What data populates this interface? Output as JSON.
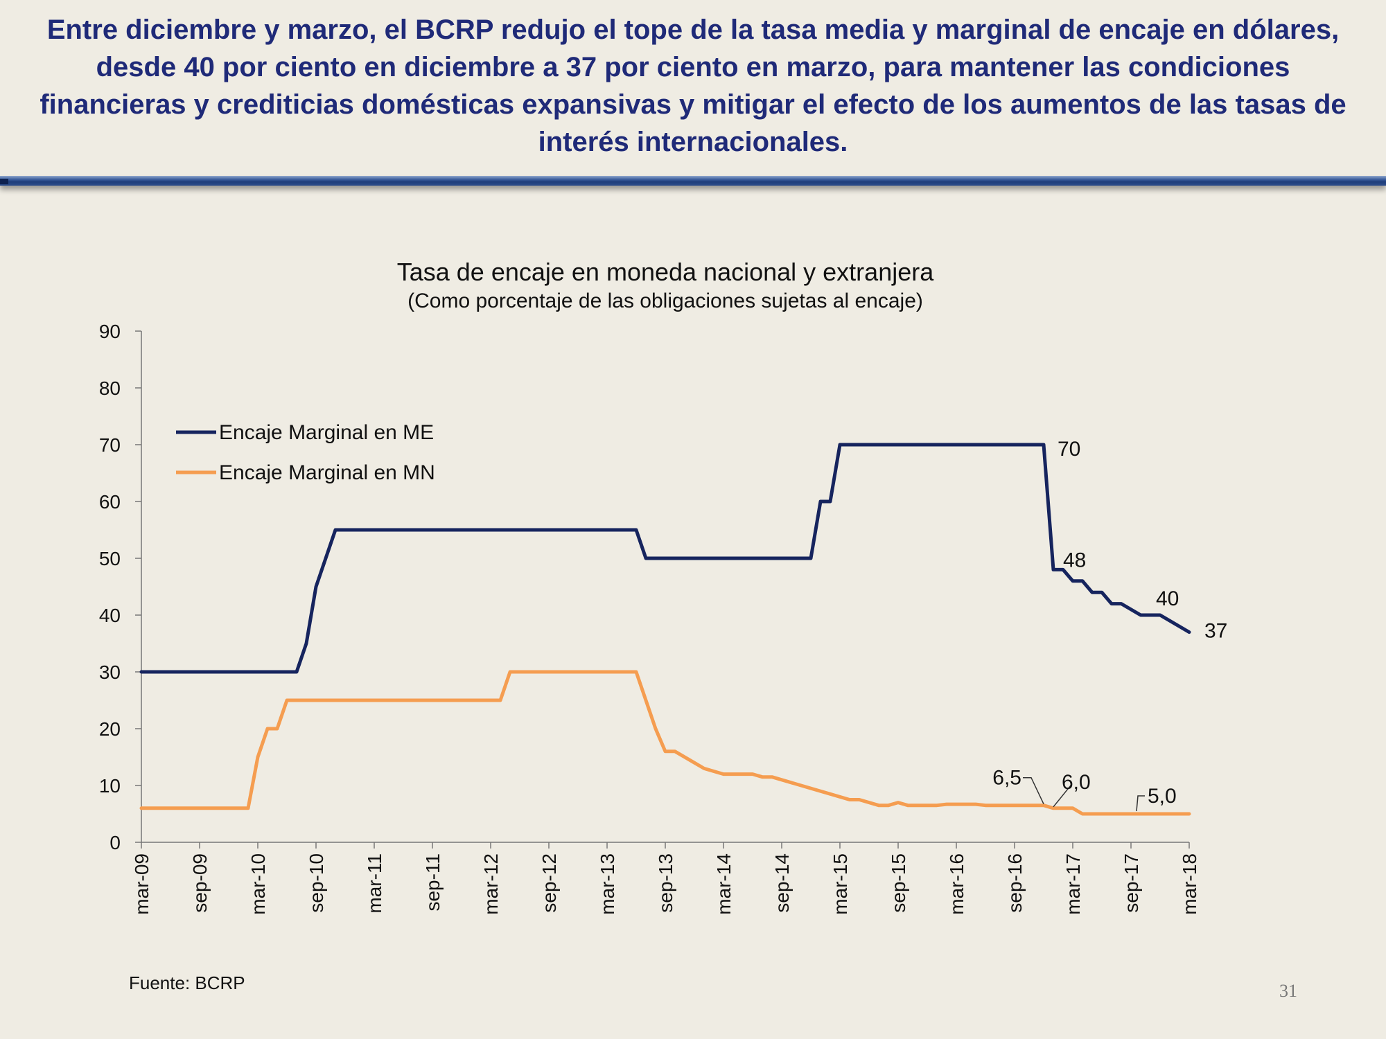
{
  "slide": {
    "headline": "Entre diciembre y marzo, el BCRP redujo el tope de la tasa media y marginal de encaje en dólares, desde 40 por ciento en diciembre a 37 por ciento en marzo, para mantener las condiciones financieras y crediticias domésticas expansivas y mitigar el efecto de los aumentos de las tasas de interés internacionales.",
    "source": "Fuente: BCRP",
    "page_number": "31"
  },
  "chart_data": {
    "type": "line",
    "title": "Tasa de encaje en moneda nacional y extranjera",
    "subtitle": "(Como porcentaje de las obligaciones sujetas al encaje)",
    "xlabel": "",
    "ylabel": "",
    "x_range": [
      "2009-03",
      "2018-03"
    ],
    "ylim": [
      0,
      90
    ],
    "y_ticks": [
      "0",
      "10",
      "20",
      "30",
      "40",
      "50",
      "60",
      "70",
      "80",
      "90"
    ],
    "x_ticks": [
      {
        "label": "mar-09",
        "date": "2009-03"
      },
      {
        "label": "sep-09",
        "date": "2009-09"
      },
      {
        "label": "mar-10",
        "date": "2010-03"
      },
      {
        "label": "sep-10",
        "date": "2010-09"
      },
      {
        "label": "mar-11",
        "date": "2011-03"
      },
      {
        "label": "sep-11",
        "date": "2011-09"
      },
      {
        "label": "mar-12",
        "date": "2012-03"
      },
      {
        "label": "sep-12",
        "date": "2012-09"
      },
      {
        "label": "mar-13",
        "date": "2013-03"
      },
      {
        "label": "sep-13",
        "date": "2013-09"
      },
      {
        "label": "mar-14",
        "date": "2014-03"
      },
      {
        "label": "sep-14",
        "date": "2014-09"
      },
      {
        "label": "mar-15",
        "date": "2015-03"
      },
      {
        "label": "sep-15",
        "date": "2015-09"
      },
      {
        "label": "mar-16",
        "date": "2016-03"
      },
      {
        "label": "sep-16",
        "date": "2016-09"
      },
      {
        "label": "mar-17",
        "date": "2017-03"
      },
      {
        "label": "sep-17",
        "date": "2017-09"
      },
      {
        "label": "mar-18",
        "date": "2018-03"
      }
    ],
    "grid": false,
    "legend_position": "top-left",
    "series": [
      {
        "name": "Encaje Marginal en ME",
        "color": "#16245e",
        "points": [
          [
            "2009-03",
            30
          ],
          [
            "2010-07",
            30
          ],
          [
            "2010-08",
            35
          ],
          [
            "2010-09",
            45
          ],
          [
            "2010-11",
            55
          ],
          [
            "2013-06",
            55
          ],
          [
            "2013-07",
            50
          ],
          [
            "2014-12",
            50
          ],
          [
            "2015-01",
            60
          ],
          [
            "2015-02",
            60
          ],
          [
            "2015-03",
            70
          ],
          [
            "2016-12",
            70
          ],
          [
            "2017-01",
            48
          ],
          [
            "2017-02",
            48
          ],
          [
            "2017-03",
            46
          ],
          [
            "2017-04",
            46
          ],
          [
            "2017-05",
            44
          ],
          [
            "2017-06",
            44
          ],
          [
            "2017-07",
            42
          ],
          [
            "2017-08",
            42
          ],
          [
            "2017-10",
            40
          ],
          [
            "2017-12",
            40
          ],
          [
            "2018-03",
            37
          ]
        ]
      },
      {
        "name": "Encaje Marginal en MN",
        "color": "#f59d50",
        "points": [
          [
            "2009-03",
            6
          ],
          [
            "2010-02",
            6
          ],
          [
            "2010-03",
            15
          ],
          [
            "2010-04",
            20
          ],
          [
            "2010-05",
            20
          ],
          [
            "2010-06",
            25
          ],
          [
            "2012-04",
            25
          ],
          [
            "2012-05",
            30
          ],
          [
            "2013-06",
            30
          ],
          [
            "2013-08",
            20
          ],
          [
            "2013-09",
            16
          ],
          [
            "2013-10",
            16
          ],
          [
            "2013-12",
            14
          ],
          [
            "2014-01",
            13
          ],
          [
            "2014-03",
            12
          ],
          [
            "2014-06",
            12
          ],
          [
            "2014-07",
            11.5
          ],
          [
            "2014-08",
            11.5
          ],
          [
            "2014-12",
            9.5
          ],
          [
            "2015-04",
            7.5
          ],
          [
            "2015-05",
            7.5
          ],
          [
            "2015-07",
            6.5
          ],
          [
            "2015-08",
            6.5
          ],
          [
            "2015-09",
            7
          ],
          [
            "2015-10",
            6.5
          ],
          [
            "2016-01",
            6.5
          ],
          [
            "2016-02",
            6.7
          ],
          [
            "2016-05",
            6.7
          ],
          [
            "2016-06",
            6.5
          ],
          [
            "2016-12",
            6.5
          ],
          [
            "2017-01",
            6
          ],
          [
            "2017-03",
            6
          ],
          [
            "2017-04",
            5
          ],
          [
            "2018-03",
            5
          ]
        ]
      }
    ],
    "annotations": [
      {
        "text": "70",
        "series": "Encaje Marginal en ME",
        "date": "2016-12",
        "value": 70
      },
      {
        "text": "48",
        "series": "Encaje Marginal en ME",
        "date": "2017-01",
        "value": 48
      },
      {
        "text": "40",
        "series": "Encaje Marginal en ME",
        "date": "2017-10",
        "value": 40
      },
      {
        "text": "37",
        "series": "Encaje Marginal en ME",
        "date": "2018-03",
        "value": 37
      },
      {
        "text": "6,5",
        "series": "Encaje Marginal en MN",
        "date": "2016-12",
        "value": 6.5
      },
      {
        "text": "6,0",
        "series": "Encaje Marginal en MN",
        "date": "2017-01",
        "value": 6
      },
      {
        "text": "5,0",
        "series": "Encaje Marginal en MN",
        "date": "2017-09",
        "value": 5
      }
    ]
  }
}
